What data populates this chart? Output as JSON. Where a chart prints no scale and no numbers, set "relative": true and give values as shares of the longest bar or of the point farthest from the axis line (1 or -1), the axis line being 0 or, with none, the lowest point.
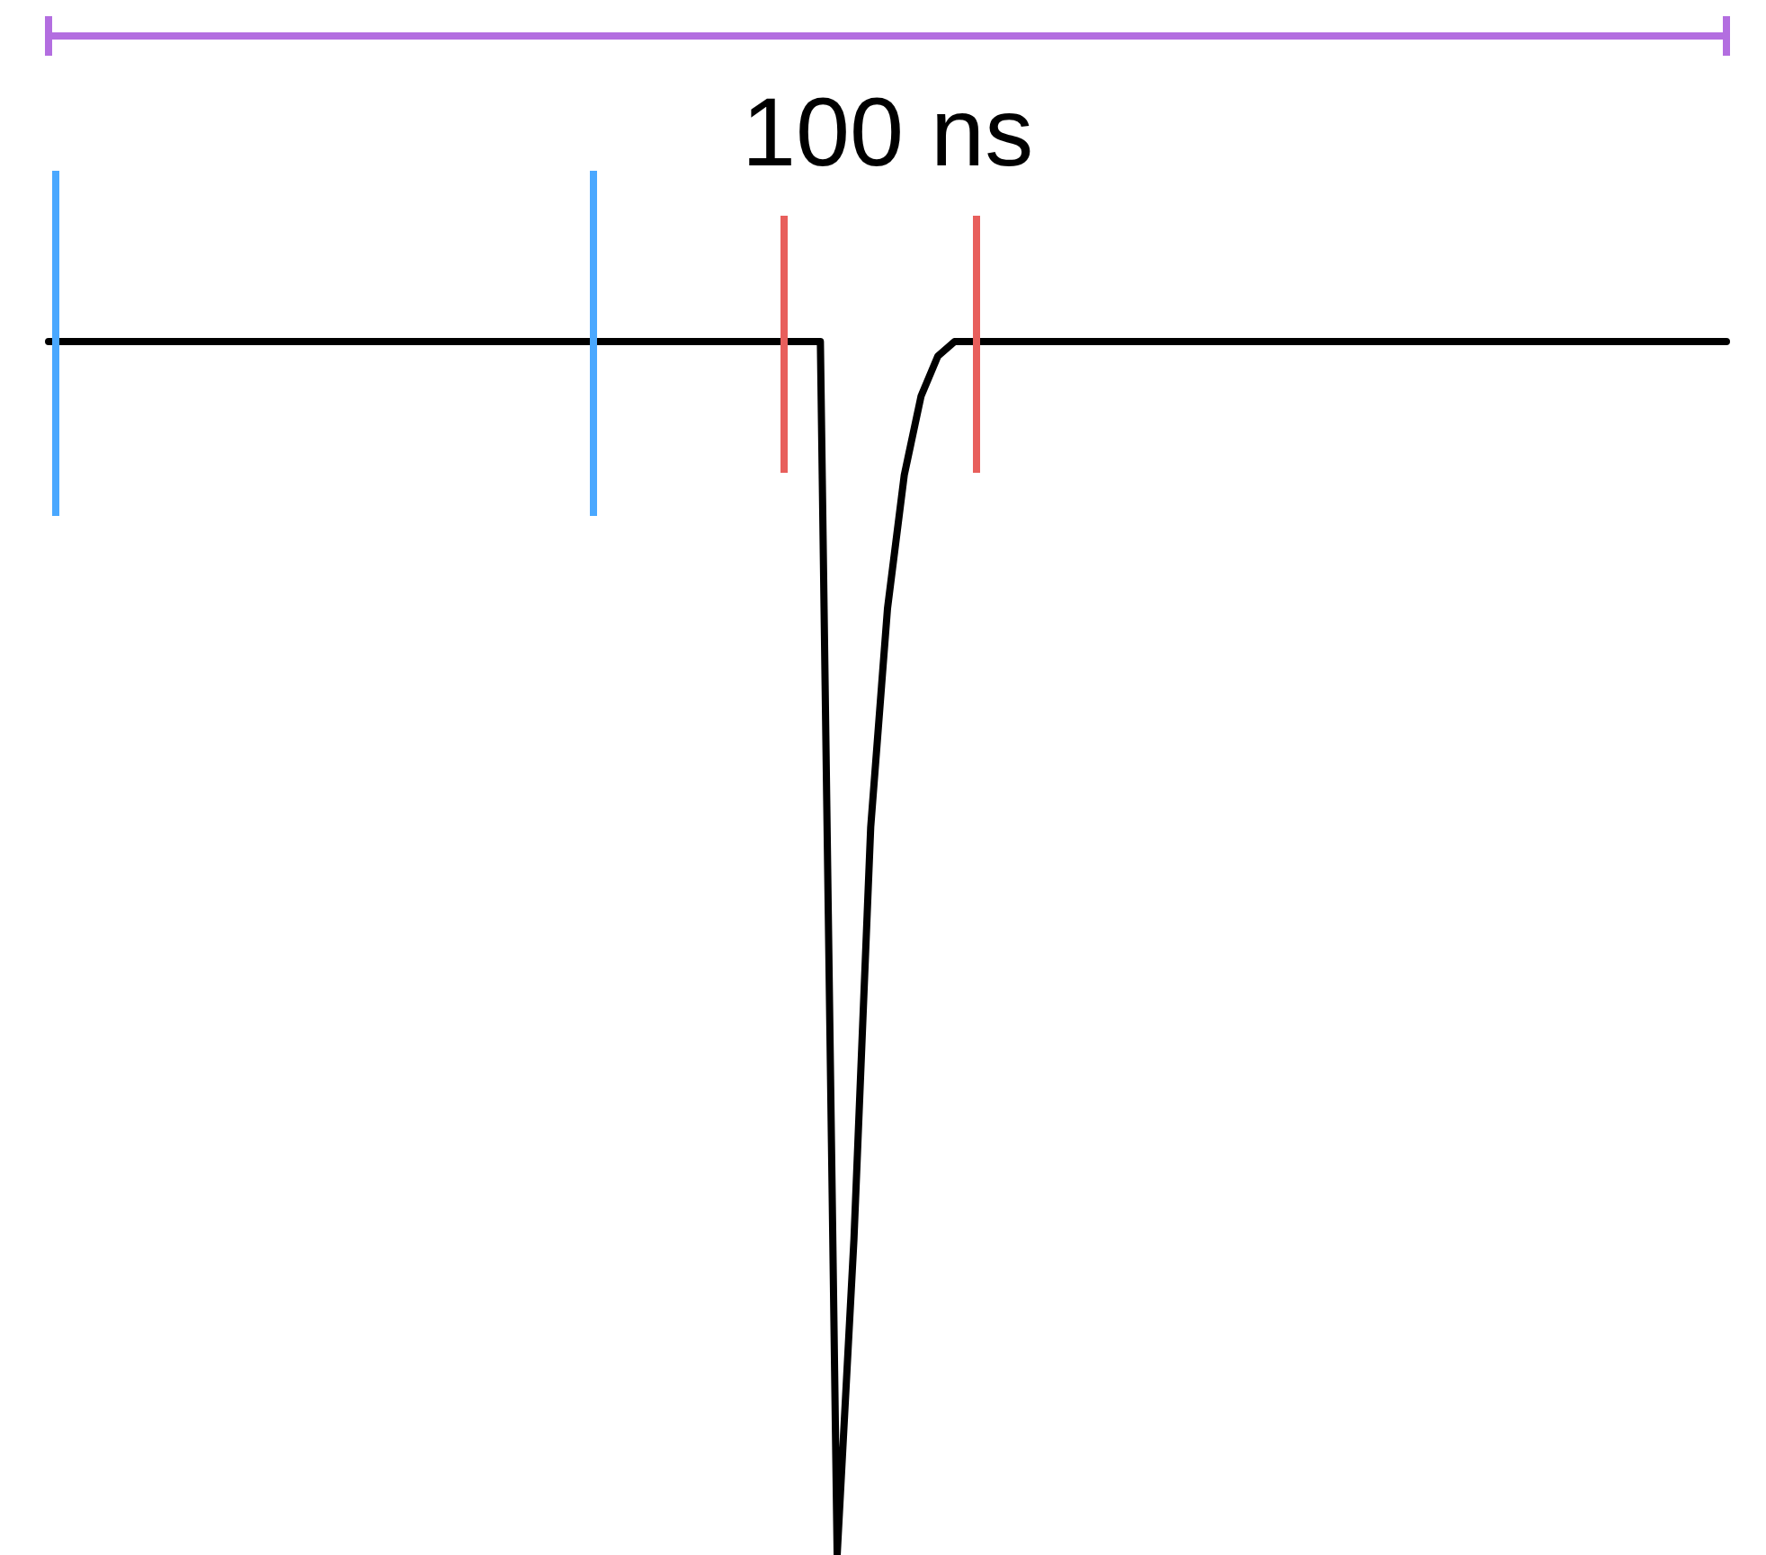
{
  "chart_data": {
    "type": "line",
    "relative": true,
    "marker": "none",
    "line_style": "solid",
    "annotations": [
      "100 ns"
    ],
    "categories": [
      null,
      null,
      null,
      null,
      null,
      null,
      null,
      null,
      null,
      null,
      null,
      null,
      null,
      null,
      null,
      null,
      null,
      null,
      null,
      null,
      null,
      null,
      null,
      null,
      null,
      null,
      null,
      null,
      null,
      null,
      null,
      null,
      null,
      null,
      null,
      null,
      null,
      null,
      null,
      null,
      null,
      null,
      null,
      null,
      null,
      null,
      null,
      null,
      null,
      null,
      null,
      null,
      null,
      null,
      null,
      null,
      null,
      null,
      null,
      null,
      null,
      null,
      null,
      null,
      null,
      null,
      null,
      null,
      null,
      null,
      null,
      null,
      null,
      null,
      null,
      null,
      null,
      null,
      null,
      null,
      null,
      null,
      null,
      null,
      null,
      null,
      null,
      null,
      null,
      null,
      null,
      null,
      null,
      null,
      null,
      null,
      null,
      null,
      null,
      null,
      null
    ],
    "series": [
      {
        "color": "#000000",
        "values": [
          1,
          1,
          1,
          1,
          1,
          1,
          1,
          1,
          1,
          1,
          1,
          1,
          1,
          1,
          1,
          1,
          1,
          1,
          1,
          1,
          1,
          1,
          1,
          1,
          1,
          1,
          1,
          1,
          1,
          1,
          1,
          1,
          1,
          1,
          1,
          1,
          1,
          1,
          1,
          1,
          1,
          1,
          1,
          1,
          1,
          1,
          1,
          0,
          0.26,
          0.6,
          0.78,
          0.89,
          0.955,
          0.988,
          1,
          1,
          1,
          1,
          1,
          1,
          1,
          1,
          1,
          1,
          1,
          1,
          1,
          1,
          1,
          1,
          1,
          1,
          1,
          1,
          1,
          1,
          1,
          1,
          1,
          1,
          1,
          1,
          1,
          1,
          1,
          1,
          1,
          1,
          1,
          1,
          1,
          1,
          1,
          1,
          1,
          1,
          1,
          1,
          1,
          1,
          1
        ]
      }
    ]
  }
}
